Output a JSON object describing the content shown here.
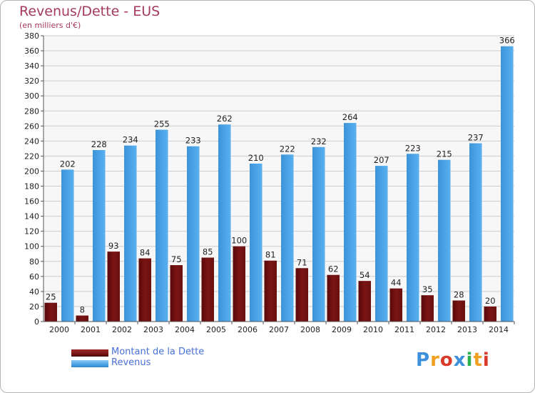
{
  "title": "Revenus/Dette - EUS",
  "subtitle": "(en milliers d'€)",
  "logo": {
    "text": "Proxiti"
  },
  "chart_data": {
    "type": "bar",
    "categories": [
      "2000",
      "2001",
      "2002",
      "2003",
      "2004",
      "2005",
      "2006",
      "2007",
      "2008",
      "2009",
      "2010",
      "2011",
      "2012",
      "2013",
      "2014"
    ],
    "series": [
      {
        "name": "Montant de la Dette",
        "color": "#7a1414",
        "values": [
          25,
          8,
          93,
          84,
          75,
          85,
          100,
          81,
          71,
          62,
          54,
          44,
          35,
          28,
          20
        ]
      },
      {
        "name": "Revenus",
        "color": "#4aa3e6",
        "values": [
          202,
          228,
          234,
          255,
          233,
          262,
          210,
          222,
          232,
          264,
          207,
          223,
          215,
          237,
          366
        ]
      }
    ],
    "ylim": [
      0,
      380
    ],
    "ytick_step": 20,
    "grid": true,
    "legend_position": "bottom-left"
  },
  "colors": {
    "title": "#a43a5c",
    "legend_text": "#4a6fd6",
    "grid": "#cccccc",
    "plot_bg": "#f7f7f7"
  }
}
